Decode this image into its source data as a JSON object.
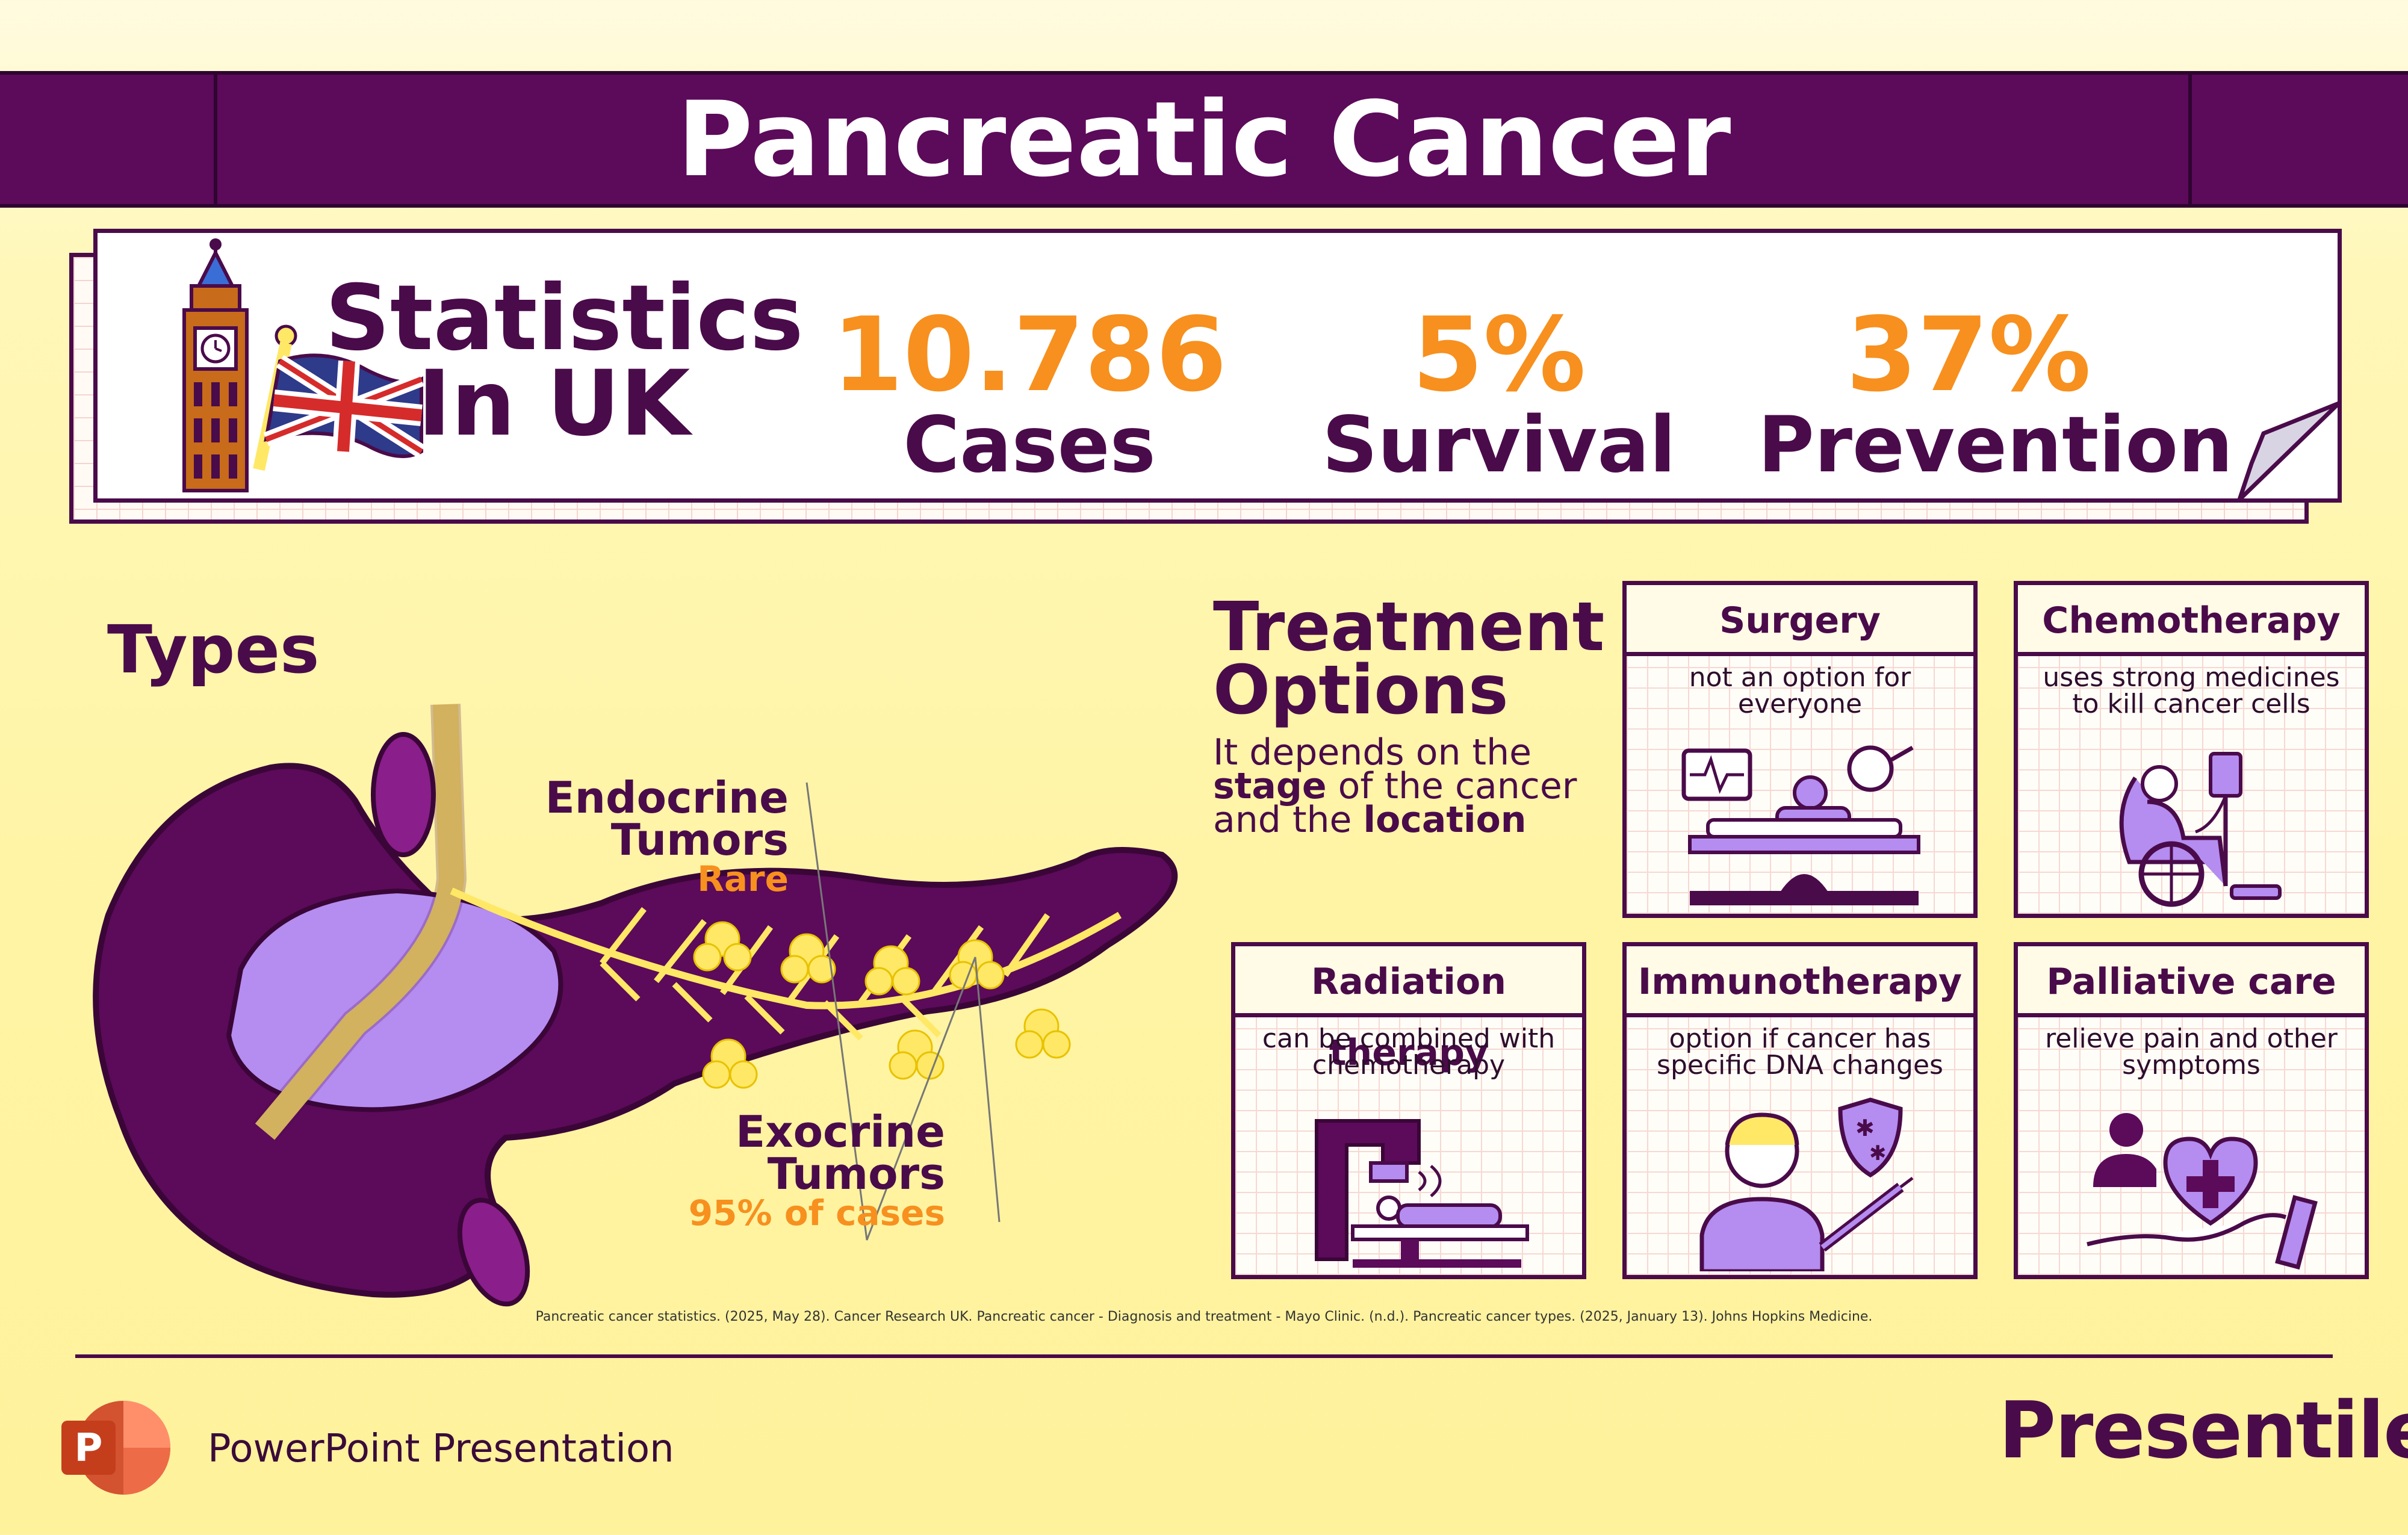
{
  "title": "Pancreatic Cancer",
  "stats": {
    "heading_line1": "Statistics",
    "heading_line2": "In UK",
    "items": [
      {
        "value": "10.786",
        "label": "Cases"
      },
      {
        "value": "5%",
        "label": "Survival"
      },
      {
        "value": "37%",
        "label": "Prevention"
      }
    ]
  },
  "types": {
    "title": "Types",
    "endocrine": {
      "line1": "Endocrine",
      "line2": "Tumors",
      "sub": "Rare"
    },
    "exocrine": {
      "line1": "Exocrine",
      "line2": "Tumors",
      "sub": "95% of cases"
    }
  },
  "treatment": {
    "title_line1": "Treatment",
    "title_line2": "Options",
    "desc_1": "It depends on the",
    "desc_stage": "stage",
    "desc_2": " of the cancer",
    "desc_3": "and the ",
    "desc_location": "location",
    "cards": [
      {
        "title": "Surgery",
        "desc": "not an option for everyone",
        "icon": "surgery-icon"
      },
      {
        "title": "Chemotherapy",
        "desc": "uses strong medicines to kill cancer cells",
        "icon": "chemotherapy-icon"
      },
      {
        "title": "Radiation therapy",
        "desc": "can be combined with chemotherapy",
        "icon": "radiation-icon"
      },
      {
        "title": "Immunotherapy",
        "desc": "option if  cancer has specific DNA changes",
        "icon": "immunotherapy-icon"
      },
      {
        "title": "Palliative care",
        "desc": "relieve pain and other symptoms",
        "icon": "palliative-icon"
      }
    ]
  },
  "references": "Pancreatic cancer statistics. (2025, May 28). Cancer Research UK.  Pancreatic cancer - Diagnosis and treatment - Mayo Clinic. (n.d.).  Pancreatic cancer types. (2025, January 13). Johns Hopkins Medicine.",
  "footer": {
    "app_label": "PowerPoint Presentation",
    "brand": "Presentile"
  },
  "colors": {
    "primary": "#4a0b4a",
    "accent": "#f7901e",
    "banner": "#5c0a5a",
    "lavender": "#b58cf0",
    "yellow": "#ffe866"
  }
}
